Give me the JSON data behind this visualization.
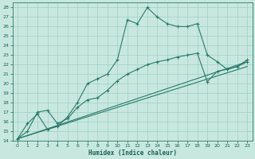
{
  "xlabel": "Humidex (Indice chaleur)",
  "bg_color": "#c8e8df",
  "line_color": "#2a7a6e",
  "grid_color": "#9ecfc4",
  "xlim": [
    -0.5,
    23.5
  ],
  "ylim": [
    14,
    28.5
  ],
  "xticks": [
    0,
    1,
    2,
    3,
    4,
    5,
    6,
    7,
    8,
    9,
    10,
    11,
    12,
    13,
    14,
    15,
    16,
    17,
    18,
    19,
    20,
    21,
    22,
    23
  ],
  "yticks": [
    14,
    15,
    16,
    17,
    18,
    19,
    20,
    21,
    22,
    23,
    24,
    25,
    26,
    27,
    28
  ],
  "line_main_x": [
    0,
    1,
    2,
    3,
    4,
    5,
    6,
    7,
    8,
    9,
    10,
    11,
    12,
    13,
    14,
    15,
    16,
    17,
    18,
    19,
    20,
    21,
    22,
    23
  ],
  "line_main_y": [
    14.2,
    15.8,
    16.8,
    15.2,
    15.5,
    16.5,
    18.0,
    20.0,
    20.5,
    21.0,
    22.5,
    26.7,
    26.3,
    28.0,
    27.0,
    26.3,
    26.0,
    26.0,
    26.3,
    23.0,
    22.3,
    21.5,
    21.8,
    22.5
  ],
  "line_second_x": [
    0,
    1,
    2,
    3,
    4,
    5,
    6,
    7,
    8,
    9,
    10,
    11,
    12,
    13,
    14,
    15,
    16,
    17,
    18,
    19,
    20,
    21,
    22,
    23
  ],
  "line_second_y": [
    14.2,
    15.0,
    17.0,
    17.2,
    15.8,
    16.3,
    17.5,
    18.3,
    18.5,
    19.3,
    20.3,
    21.0,
    21.5,
    22.0,
    22.3,
    22.5,
    22.8,
    23.0,
    23.2,
    20.2,
    21.3,
    21.5,
    21.8,
    22.3
  ],
  "trend1_x": [
    0,
    23
  ],
  "trend1_y": [
    14.2,
    21.8
  ],
  "trend2_x": [
    0,
    23
  ],
  "trend2_y": [
    14.2,
    22.3
  ]
}
